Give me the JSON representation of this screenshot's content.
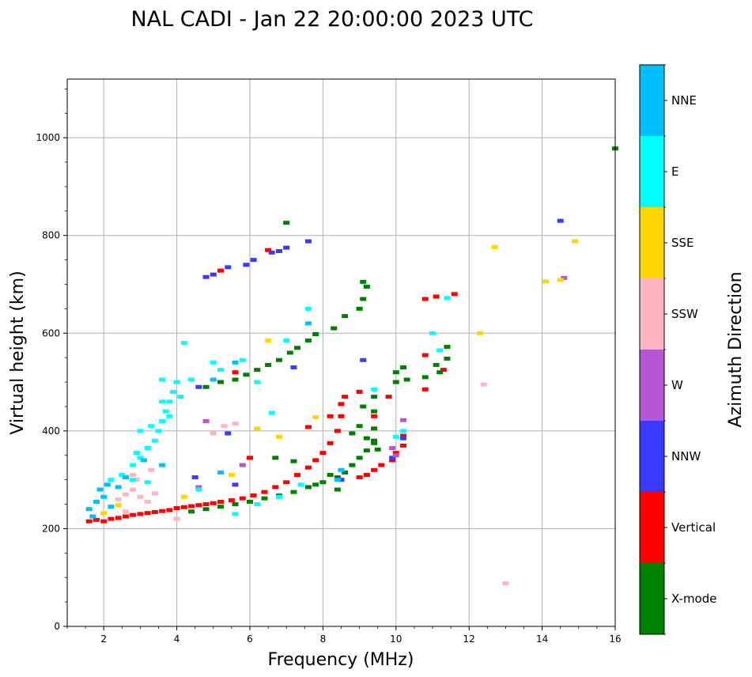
{
  "chart_data": {
    "type": "scatter",
    "title": "NAL CADI - Jan 22 20:00:00 2023 UTC",
    "xlabel": "Frequency (MHz)",
    "ylabel": "Virtual height (km)",
    "xlim": [
      1,
      16
    ],
    "ylim": [
      0,
      1120
    ],
    "xticks": [
      2,
      4,
      6,
      8,
      10,
      12,
      14,
      16
    ],
    "yticks": [
      0,
      200,
      400,
      600,
      800,
      1000
    ],
    "grid": true,
    "colorbar": {
      "label": "Azimuth Direction",
      "categories": [
        {
          "name": "X-mode",
          "color": "#008000"
        },
        {
          "name": "Vertical",
          "color": "#ff0000"
        },
        {
          "name": "NNW",
          "color": "#3a3aff"
        },
        {
          "name": "W",
          "color": "#b456d6"
        },
        {
          "name": "SSW",
          "color": "#ffb6c1"
        },
        {
          "name": "SSE",
          "color": "#ffd700"
        },
        {
          "name": "E",
          "color": "#00ffff"
        },
        {
          "name": "NNE",
          "color": "#00bfff"
        }
      ]
    },
    "series": [
      {
        "name": "Vertical",
        "points": [
          [
            1.6,
            215
          ],
          [
            1.8,
            218
          ],
          [
            2.0,
            215
          ],
          [
            2.2,
            220
          ],
          [
            2.4,
            222
          ],
          [
            2.6,
            225
          ],
          [
            2.8,
            228
          ],
          [
            3.0,
            230
          ],
          [
            3.2,
            232
          ],
          [
            3.4,
            234
          ],
          [
            3.6,
            236
          ],
          [
            3.8,
            238
          ],
          [
            4.0,
            242
          ],
          [
            4.2,
            244
          ],
          [
            4.4,
            246
          ],
          [
            4.6,
            248
          ],
          [
            4.8,
            250
          ],
          [
            5.0,
            252
          ],
          [
            5.2,
            255
          ],
          [
            5.5,
            258
          ],
          [
            5.8,
            262
          ],
          [
            6.1,
            268
          ],
          [
            6.4,
            275
          ],
          [
            6.7,
            285
          ],
          [
            7.0,
            295
          ],
          [
            7.3,
            310
          ],
          [
            7.6,
            325
          ],
          [
            7.8,
            340
          ],
          [
            8.0,
            355
          ],
          [
            8.2,
            375
          ],
          [
            8.4,
            400
          ],
          [
            8.5,
            430
          ],
          [
            8.5,
            455
          ],
          [
            8.6,
            470
          ],
          [
            9.0,
            305
          ],
          [
            9.2,
            310
          ],
          [
            9.4,
            320
          ],
          [
            9.6,
            330
          ],
          [
            9.9,
            340
          ],
          [
            10.0,
            355
          ],
          [
            10.2,
            370
          ],
          [
            10.2,
            390
          ],
          [
            9.0,
            480
          ],
          [
            9.8,
            470
          ],
          [
            10.8,
            485
          ],
          [
            10.8,
            555
          ],
          [
            10.8,
            670
          ],
          [
            11.1,
            675
          ],
          [
            11.3,
            525
          ],
          [
            11.6,
            680
          ],
          [
            7.6,
            408
          ],
          [
            6.0,
            345
          ],
          [
            5.6,
            520
          ],
          [
            5.2,
            728
          ],
          [
            6.5,
            770
          ],
          [
            8.2,
            430
          ],
          [
            9.4,
            430
          ]
        ]
      },
      {
        "name": "X-mode",
        "points": [
          [
            4.4,
            235
          ],
          [
            4.8,
            240
          ],
          [
            5.2,
            245
          ],
          [
            5.6,
            250
          ],
          [
            6.0,
            255
          ],
          [
            6.4,
            262
          ],
          [
            6.8,
            268
          ],
          [
            7.2,
            275
          ],
          [
            7.6,
            285
          ],
          [
            8.0,
            295
          ],
          [
            8.4,
            305
          ],
          [
            8.6,
            315
          ],
          [
            8.8,
            330
          ],
          [
            9.0,
            345
          ],
          [
            9.2,
            360
          ],
          [
            9.4,
            380
          ],
          [
            9.4,
            405
          ],
          [
            9.4,
            440
          ],
          [
            9.4,
            470
          ],
          [
            8.8,
            395
          ],
          [
            9.0,
            410
          ],
          [
            9.1,
            450
          ],
          [
            9.4,
            375
          ],
          [
            9.2,
            385
          ],
          [
            10.0,
            500
          ],
          [
            10.3,
            505
          ],
          [
            10.8,
            510
          ],
          [
            11.2,
            520
          ],
          [
            11.4,
            548
          ],
          [
            11.4,
            572
          ],
          [
            11.1,
            535
          ],
          [
            10.0,
            520
          ],
          [
            10.2,
            530
          ],
          [
            4.8,
            490
          ],
          [
            5.2,
            500
          ],
          [
            5.6,
            505
          ],
          [
            5.9,
            515
          ],
          [
            6.2,
            525
          ],
          [
            6.5,
            535
          ],
          [
            6.8,
            545
          ],
          [
            7.1,
            560
          ],
          [
            7.3,
            570
          ],
          [
            7.6,
            585
          ],
          [
            7.8,
            598
          ],
          [
            8.3,
            610
          ],
          [
            8.6,
            635
          ],
          [
            9.0,
            650
          ],
          [
            9.1,
            670
          ],
          [
            9.2,
            695
          ],
          [
            9.1,
            705
          ],
          [
            7.0,
            826
          ],
          [
            8.4,
            280
          ],
          [
            6.7,
            345
          ],
          [
            7.2,
            338
          ],
          [
            8.2,
            310
          ],
          [
            16.0,
            978
          ],
          [
            9.5,
            362
          ],
          [
            7.8,
            290
          ]
        ]
      },
      {
        "name": "NNW",
        "points": [
          [
            4.8,
            715
          ],
          [
            5.0,
            720
          ],
          [
            5.4,
            735
          ],
          [
            5.9,
            740
          ],
          [
            6.1,
            750
          ],
          [
            6.6,
            765
          ],
          [
            6.8,
            768
          ],
          [
            7.0,
            775
          ],
          [
            7.6,
            788
          ],
          [
            14.5,
            830
          ],
          [
            4.6,
            490
          ],
          [
            5.4,
            395
          ],
          [
            8.5,
            300
          ],
          [
            9.1,
            545
          ],
          [
            9.9,
            345
          ],
          [
            10.2,
            385
          ],
          [
            4.5,
            305
          ],
          [
            5.6,
            290
          ],
          [
            7.2,
            530
          ]
        ]
      },
      {
        "name": "W",
        "points": [
          [
            4.8,
            420
          ],
          [
            4.6,
            285
          ],
          [
            5.8,
            330
          ],
          [
            9.9,
            365
          ],
          [
            10.2,
            422
          ],
          [
            10.0,
            350
          ],
          [
            14.6,
            713
          ]
        ]
      },
      {
        "name": "SSW",
        "points": [
          [
            2.4,
            260
          ],
          [
            2.6,
            270
          ],
          [
            2.8,
            280
          ],
          [
            3.0,
            265
          ],
          [
            3.2,
            255
          ],
          [
            3.4,
            272
          ],
          [
            2.6,
            235
          ],
          [
            2.9,
            300
          ],
          [
            3.3,
            320
          ],
          [
            5.0,
            395
          ],
          [
            5.3,
            410
          ],
          [
            5.6,
            415
          ],
          [
            12.4,
            495
          ],
          [
            13.0,
            88
          ],
          [
            2.8,
            310
          ],
          [
            4.0,
            220
          ]
        ]
      },
      {
        "name": "SSE",
        "points": [
          [
            2.0,
            232
          ],
          [
            2.4,
            248
          ],
          [
            6.2,
            405
          ],
          [
            6.8,
            388
          ],
          [
            7.8,
            428
          ],
          [
            12.3,
            600
          ],
          [
            12.7,
            776
          ],
          [
            14.1,
            706
          ],
          [
            14.5,
            709
          ],
          [
            14.9,
            788
          ],
          [
            5.5,
            310
          ],
          [
            6.5,
            585
          ],
          [
            4.2,
            265
          ]
        ]
      },
      {
        "name": "E",
        "points": [
          [
            2.2,
            300
          ],
          [
            2.5,
            310
          ],
          [
            2.8,
            330
          ],
          [
            3.0,
            345
          ],
          [
            3.2,
            365
          ],
          [
            3.4,
            380
          ],
          [
            3.5,
            400
          ],
          [
            3.6,
            420
          ],
          [
            3.7,
            440
          ],
          [
            3.8,
            460
          ],
          [
            3.9,
            480
          ],
          [
            4.0,
            500
          ],
          [
            3.6,
            505
          ],
          [
            4.2,
            580
          ],
          [
            4.4,
            505
          ],
          [
            4.1,
            470
          ],
          [
            3.3,
            410
          ],
          [
            3.0,
            400
          ],
          [
            2.9,
            355
          ],
          [
            3.6,
            460
          ],
          [
            3.8,
            430
          ],
          [
            2.8,
            300
          ],
          [
            3.2,
            295
          ],
          [
            5.6,
            230
          ],
          [
            6.2,
            250
          ],
          [
            6.8,
            265
          ],
          [
            7.4,
            290
          ],
          [
            5.0,
            540
          ],
          [
            5.2,
            525
          ],
          [
            5.8,
            545
          ],
          [
            6.2,
            500
          ],
          [
            6.6,
            437
          ],
          [
            7.0,
            585
          ],
          [
            7.6,
            650
          ],
          [
            10.0,
            388
          ],
          [
            10.2,
            400
          ],
          [
            11.0,
            600
          ],
          [
            11.2,
            565
          ],
          [
            11.4,
            672
          ],
          [
            9.4,
            485
          ],
          [
            4.6,
            280
          ]
        ]
      },
      {
        "name": "NNE",
        "points": [
          [
            1.6,
            240
          ],
          [
            1.8,
            255
          ],
          [
            2.0,
            265
          ],
          [
            2.2,
            245
          ],
          [
            1.7,
            225
          ],
          [
            1.9,
            280
          ],
          [
            2.1,
            290
          ],
          [
            2.6,
            305
          ],
          [
            3.1,
            340
          ],
          [
            3.6,
            330
          ],
          [
            5.0,
            505
          ],
          [
            5.6,
            540
          ],
          [
            7.6,
            620
          ],
          [
            8.4,
            300
          ],
          [
            8.5,
            320
          ],
          [
            5.2,
            315
          ],
          [
            2.4,
            285
          ]
        ]
      }
    ]
  }
}
